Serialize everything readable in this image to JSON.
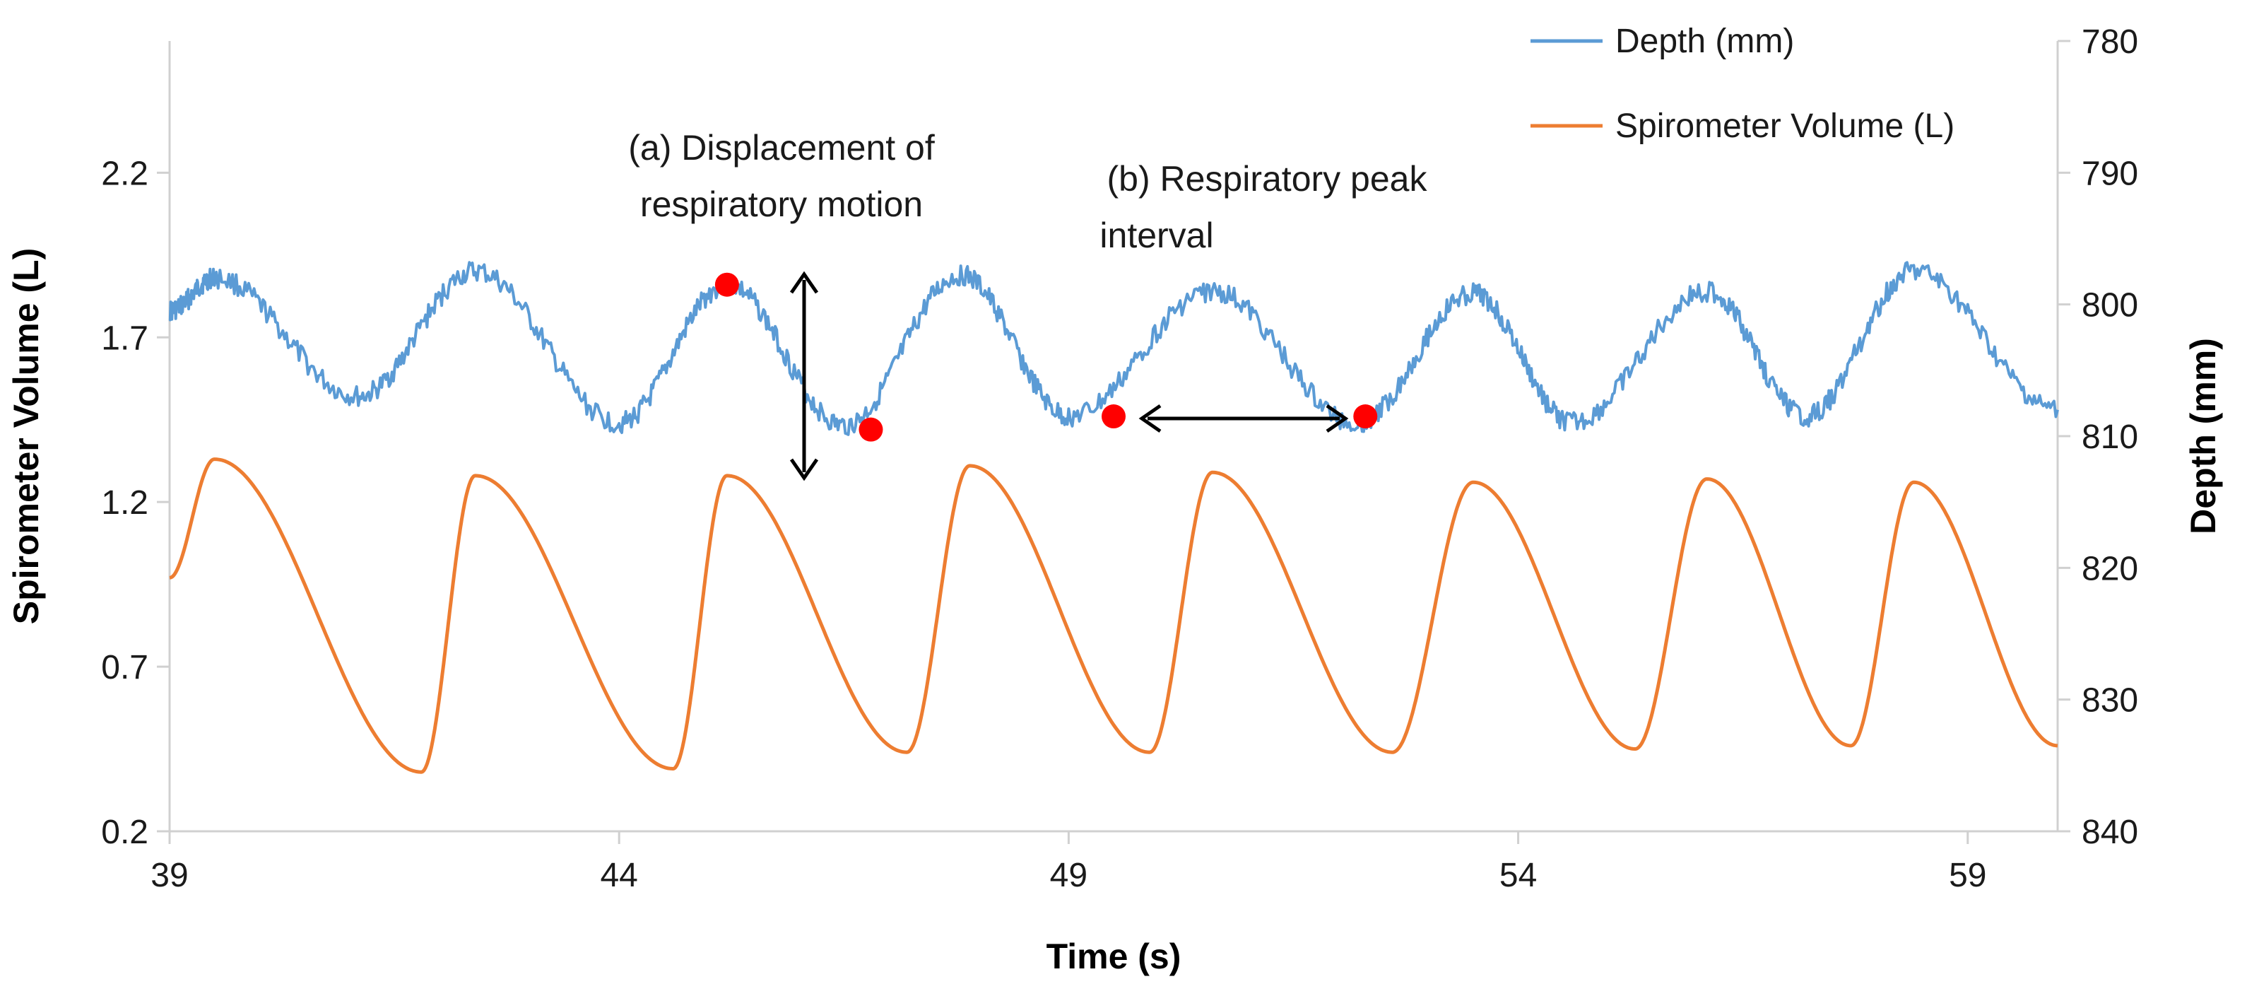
{
  "chart_data": {
    "type": "line",
    "title": "",
    "xlabel": "Time (s)",
    "ylabel_left": "Spirometer Volume (L)",
    "ylabel_right": "Depth (mm)",
    "xlim": [
      39,
      60
    ],
    "xticks": [
      39,
      44,
      49,
      54,
      59
    ],
    "ylim_left": [
      0.2,
      2.6
    ],
    "yticks_left": [
      0.2,
      0.7,
      1.2,
      1.7,
      2.2
    ],
    "ylim_right": [
      780,
      840
    ],
    "yticks_right": [
      780,
      790,
      800,
      810,
      820,
      830,
      840
    ],
    "right_axis_inverted": true,
    "grid": false,
    "legend_position": "top-right",
    "series": [
      {
        "name": "Depth (mm)",
        "axis": "right",
        "color": "#5b9bd5",
        "peaks": [
          [
            39.5,
            798
          ],
          [
            42.4,
            797.5
          ],
          [
            45.2,
            798.5
          ],
          [
            47.8,
            797.8
          ],
          [
            50.6,
            799
          ],
          [
            53.5,
            799.2
          ],
          [
            56.1,
            799
          ],
          [
            58.4,
            797.5
          ]
        ],
        "troughs": [
          [
            39.0,
            800.5
          ],
          [
            41.1,
            807
          ],
          [
            44.0,
            809
          ],
          [
            46.5,
            809.2
          ],
          [
            49.0,
            808.5
          ],
          [
            52.2,
            809
          ],
          [
            54.6,
            809
          ],
          [
            57.2,
            808.5
          ],
          [
            60.0,
            808
          ]
        ]
      },
      {
        "name": "Spirometer Volume (L)",
        "axis": "left",
        "color": "#ed7d31",
        "peaks": [
          [
            39.5,
            1.33
          ],
          [
            42.4,
            1.28
          ],
          [
            45.2,
            1.28
          ],
          [
            47.9,
            1.31
          ],
          [
            50.6,
            1.29
          ],
          [
            53.5,
            1.26
          ],
          [
            56.1,
            1.27
          ],
          [
            58.4,
            1.26
          ]
        ],
        "troughs": [
          [
            39.0,
            0.97
          ],
          [
            41.8,
            0.38
          ],
          [
            44.6,
            0.39
          ],
          [
            47.2,
            0.44
          ],
          [
            49.9,
            0.44
          ],
          [
            52.6,
            0.44
          ],
          [
            55.3,
            0.45
          ],
          [
            57.7,
            0.46
          ],
          [
            60.0,
            0.46
          ]
        ]
      }
    ],
    "markers": [
      {
        "x": 45.2,
        "depth": 798.5,
        "color": "#ff0000"
      },
      {
        "x": 46.8,
        "depth": 809.5,
        "color": "#ff0000"
      },
      {
        "x": 49.5,
        "depth": 808.5,
        "color": "#ff0000"
      },
      {
        "x": 52.3,
        "depth": 808.5,
        "color": "#ff0000"
      }
    ],
    "annotations": [
      {
        "lines": [
          "(a) Displacement of",
          "respiratory motion"
        ],
        "arrow": "vertical"
      },
      {
        "lines": [
          "(b) Respiratory peak",
          "interval"
        ],
        "arrow": "horizontal"
      }
    ]
  }
}
